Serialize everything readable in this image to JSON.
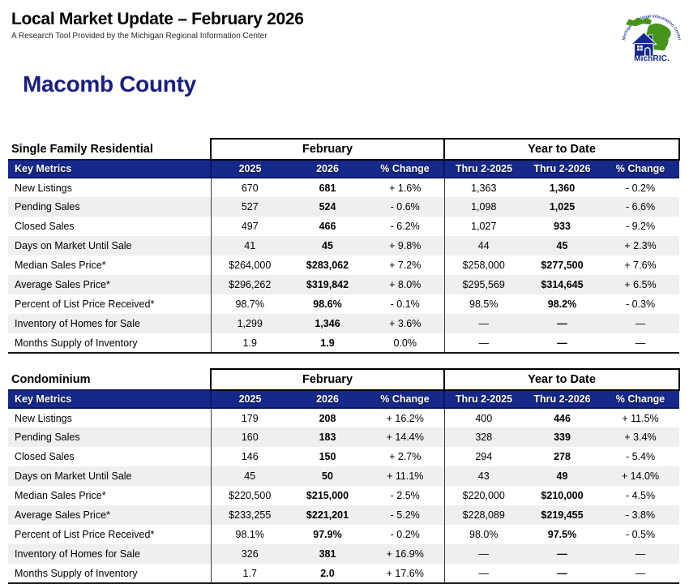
{
  "header": {
    "title": "Local Market Update – February 2026",
    "subtitle": "A Research Tool Provided by the Michigan Regional Information Center",
    "region": "Macomb County",
    "logo": {
      "arc_text": "Michigan Regional Information Center",
      "label": "MichRIC."
    }
  },
  "colors": {
    "band_navy": "#16298b",
    "band_border": "#0a1560",
    "row_stripe": "#efefef",
    "region_title": "#1a1f7e",
    "logo_green": "#45941c",
    "logo_blue": "#16298b"
  },
  "tables": [
    {
      "section_label": "Single Family Residential",
      "group_headers": [
        "February",
        "Year to Date"
      ],
      "band_label": "Key Metrics",
      "columns": [
        "2025",
        "2026",
        "% Change",
        "Thru 2-2025",
        "Thru 2-2026",
        "% Change"
      ],
      "rows": [
        {
          "metric": "New Listings",
          "values": [
            "670",
            "681",
            "+ 1.6%",
            "1,363",
            "1,360",
            "- 0.2%"
          ]
        },
        {
          "metric": "Pending Sales",
          "values": [
            "527",
            "524",
            "- 0.6%",
            "1,098",
            "1,025",
            "- 6.6%"
          ]
        },
        {
          "metric": "Closed Sales",
          "values": [
            "497",
            "466",
            "- 6.2%",
            "1,027",
            "933",
            "- 9.2%"
          ]
        },
        {
          "metric": "Days on Market Until Sale",
          "values": [
            "41",
            "45",
            "+ 9.8%",
            "44",
            "45",
            "+ 2.3%"
          ]
        },
        {
          "metric": "Median Sales Price*",
          "values": [
            "$264,000",
            "$283,062",
            "+ 7.2%",
            "$258,000",
            "$277,500",
            "+ 7.6%"
          ]
        },
        {
          "metric": "Average Sales Price*",
          "values": [
            "$296,262",
            "$319,842",
            "+ 8.0%",
            "$295,569",
            "$314,645",
            "+ 6.5%"
          ]
        },
        {
          "metric": "Percent of List Price Received*",
          "values": [
            "98.7%",
            "98.6%",
            "- 0.1%",
            "98.5%",
            "98.2%",
            "- 0.3%"
          ]
        },
        {
          "metric": "Inventory of Homes for Sale",
          "values": [
            "1,299",
            "1,346",
            "+ 3.6%",
            "—",
            "—",
            "—"
          ]
        },
        {
          "metric": "Months Supply of Inventory",
          "values": [
            "1.9",
            "1.9",
            "0.0%",
            "—",
            "—",
            "—"
          ]
        }
      ]
    },
    {
      "section_label": "Condominium",
      "group_headers": [
        "February",
        "Year to Date"
      ],
      "band_label": "Key Metrics",
      "columns": [
        "2025",
        "2026",
        "% Change",
        "Thru 2-2025",
        "Thru 2-2026",
        "% Change"
      ],
      "rows": [
        {
          "metric": "New Listings",
          "values": [
            "179",
            "208",
            "+ 16.2%",
            "400",
            "446",
            "+ 11.5%"
          ]
        },
        {
          "metric": "Pending Sales",
          "values": [
            "160",
            "183",
            "+ 14.4%",
            "328",
            "339",
            "+ 3.4%"
          ]
        },
        {
          "metric": "Closed Sales",
          "values": [
            "146",
            "150",
            "+ 2.7%",
            "294",
            "278",
            "- 5.4%"
          ]
        },
        {
          "metric": "Days on Market Until Sale",
          "values": [
            "45",
            "50",
            "+ 11.1%",
            "43",
            "49",
            "+ 14.0%"
          ]
        },
        {
          "metric": "Median Sales Price*",
          "values": [
            "$220,500",
            "$215,000",
            "- 2.5%",
            "$220,000",
            "$210,000",
            "- 4.5%"
          ]
        },
        {
          "metric": "Average Sales Price*",
          "values": [
            "$233,255",
            "$221,201",
            "- 5.2%",
            "$228,089",
            "$219,455",
            "- 3.8%"
          ]
        },
        {
          "metric": "Percent of List Price Received*",
          "values": [
            "98.1%",
            "97.9%",
            "- 0.2%",
            "98.0%",
            "97.5%",
            "- 0.5%"
          ]
        },
        {
          "metric": "Inventory of Homes for Sale",
          "values": [
            "326",
            "381",
            "+ 16.9%",
            "—",
            "—",
            "—"
          ]
        },
        {
          "metric": "Months Supply of Inventory",
          "values": [
            "1.7",
            "2.0",
            "+ 17.6%",
            "—",
            "—",
            "—"
          ]
        }
      ]
    }
  ]
}
